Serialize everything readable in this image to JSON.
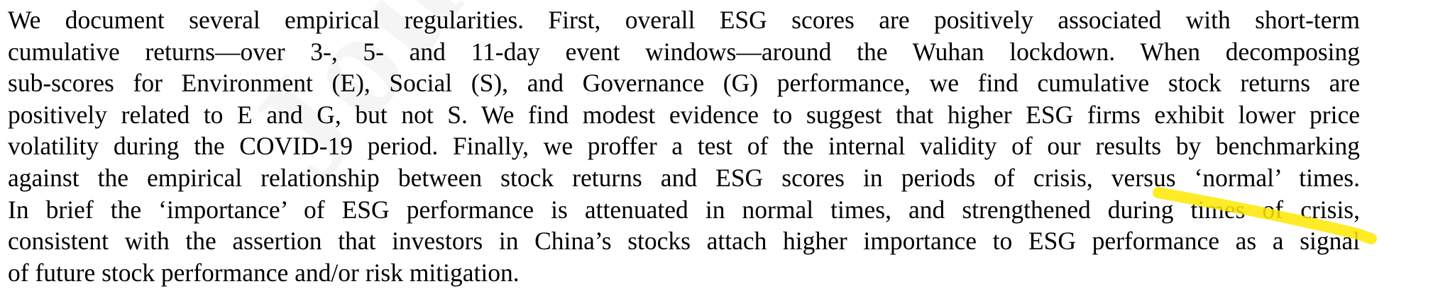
{
  "watermark": {
    "text": "Journal"
  },
  "highlight": {
    "color": "#ffe800"
  },
  "paragraph": {
    "lines": [
      "We document several empirical regularities.  First, overall ESG scores are positively associated with short-term",
      "cumulative returns—over 3-, 5- and 11-day event windows—around the Wuhan lockdown.  When decomposing",
      "sub-scores for Environment (E), Social (S), and Governance (G) performance, we find cumulative stock returns are",
      "positively related to E and G, but not S. We find modest evidence to suggest that higher ESG firms exhibit lower price",
      "volatility during the COVID-19 period. Finally, we proffer a test of the internal validity of our results by benchmarking",
      "against the empirical relationship between stock returns and ESG scores in periods of crisis, versus ‘normal’ times.",
      "In brief the ‘importance’ of ESG performance is attenuated in normal times, and strengthened during times of crisis,",
      "consistent with the assertion that investors in China’s stocks attach higher importance to ESG performance as a signal",
      "of future stock performance and/or risk mitigation."
    ]
  }
}
